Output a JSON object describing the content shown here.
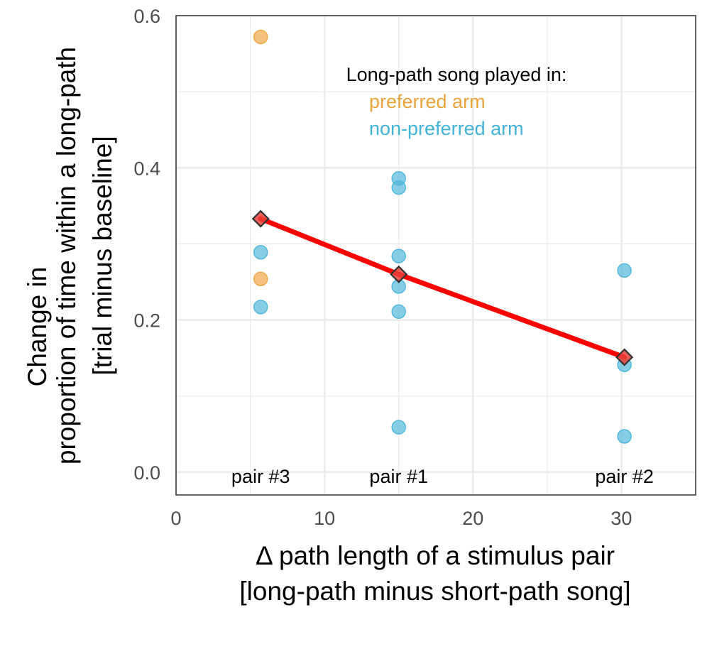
{
  "chart_data": {
    "type": "scatter",
    "xlim": [
      0,
      35
    ],
    "ylim": [
      -0.03,
      0.6
    ],
    "x_ticks": [
      0,
      10,
      20,
      30
    ],
    "y_ticks": [
      0.0,
      0.2,
      0.4,
      0.6
    ],
    "x_tick_labels": [
      "0",
      "10",
      "20",
      "30"
    ],
    "y_tick_labels": [
      "0.0",
      "0.2",
      "0.4",
      "0.6"
    ],
    "grid": true,
    "xlabel": [
      "Δ path length of a stimulus pair",
      "[long-path minus short-path song]"
    ],
    "ylabel": [
      "Change in",
      "proportion of time within a long-path",
      "[trial minus baseline]"
    ],
    "legend": {
      "title": "Long-path song played in:",
      "entries": [
        "preferred arm",
        "non-preferred arm"
      ],
      "placement": "top-center"
    },
    "colors": {
      "preferred": "#f0a848",
      "non_preferred": "#52b8dc",
      "trend": "#ff0000",
      "mean_marker": "#e8403a",
      "text_preferred": "#e8a53d",
      "text_non_preferred": "#43b3d8"
    },
    "series": [
      {
        "name": "preferred arm",
        "points": [
          [
            5.7,
            0.572
          ],
          [
            5.7,
            0.254
          ]
        ]
      },
      {
        "name": "non-preferred arm",
        "points": [
          [
            5.7,
            0.289
          ],
          [
            5.7,
            0.217
          ],
          [
            15.0,
            0.386
          ],
          [
            15.0,
            0.374
          ],
          [
            15.0,
            0.284
          ],
          [
            15.0,
            0.244
          ],
          [
            15.0,
            0.211
          ],
          [
            15.0,
            0.059
          ],
          [
            30.2,
            0.265
          ],
          [
            30.2,
            0.141
          ],
          [
            30.2,
            0.047
          ]
        ]
      },
      {
        "name": "mean",
        "points": [
          [
            5.7,
            0.333
          ],
          [
            15.0,
            0.26
          ],
          [
            30.2,
            0.151
          ]
        ]
      }
    ],
    "pair_labels": [
      {
        "text": "pair #3",
        "x": 5.7,
        "y": -0.005
      },
      {
        "text": "pair #1",
        "x": 15.0,
        "y": -0.005
      },
      {
        "text": "pair #2",
        "x": 30.2,
        "y": -0.005
      }
    ]
  }
}
